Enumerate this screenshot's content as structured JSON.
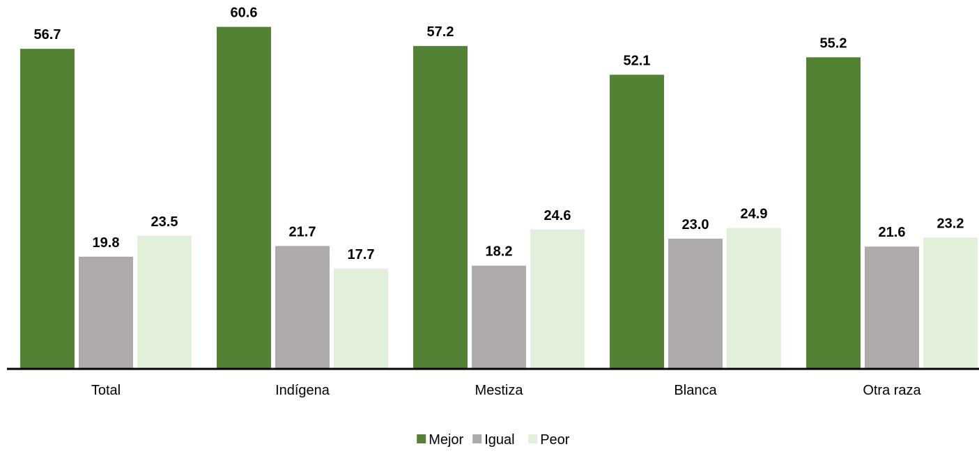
{
  "chart_data": {
    "type": "bar",
    "categories": [
      "Total",
      "Indígena",
      "Mestiza",
      "Blanca",
      "Otra raza"
    ],
    "series": [
      {
        "name": "Mejor",
        "values": [
          56.7,
          60.6,
          57.2,
          52.1,
          55.2
        ],
        "color": "#548235"
      },
      {
        "name": "Igual",
        "values": [
          19.8,
          21.7,
          18.2,
          23.0,
          21.6
        ],
        "color": "#AEAAAA"
      },
      {
        "name": "Peor",
        "values": [
          23.5,
          17.7,
          24.6,
          24.9,
          23.2
        ],
        "color": "#E2EFDA"
      }
    ],
    "ylim": [
      0,
      65
    ],
    "value_decimals": 1,
    "legend_position": "bottom",
    "grid": false
  }
}
